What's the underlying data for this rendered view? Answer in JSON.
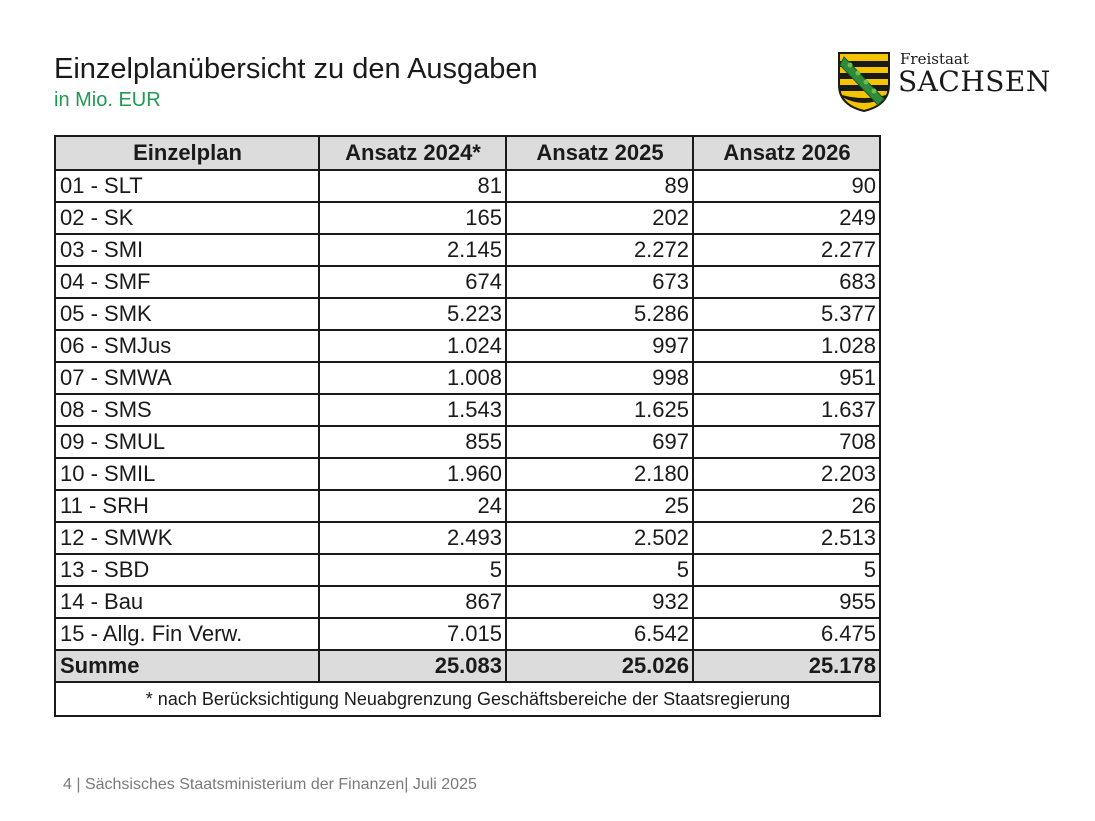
{
  "header": {
    "title": "Einzelplanübersicht zu den Ausgaben",
    "subtitle": "in Mio. EUR",
    "subtitle_color": "#1f9a4f"
  },
  "logo": {
    "line1": "Freistaat",
    "line2": "SACHSEN",
    "colors": {
      "yellow": "#f5c400",
      "black": "#1a1a1a",
      "green": "#2e8b3a"
    }
  },
  "table": {
    "columns": [
      "Einzelplan",
      "Ansatz 2024*",
      "Ansatz 2025",
      "Ansatz 2026"
    ],
    "rows": [
      [
        "01 - SLT",
        "81",
        "89",
        "90"
      ],
      [
        "02 - SK",
        "165",
        "202",
        "249"
      ],
      [
        "03 - SMI",
        "2.145",
        "2.272",
        "2.277"
      ],
      [
        "04 - SMF",
        "674",
        "673",
        "683"
      ],
      [
        "05 - SMK",
        "5.223",
        "5.286",
        "5.377"
      ],
      [
        "06 - SMJus",
        "1.024",
        "997",
        "1.028"
      ],
      [
        "07 - SMWA",
        "1.008",
        "998",
        "951"
      ],
      [
        "08 - SMS",
        "1.543",
        "1.625",
        "1.637"
      ],
      [
        "09 - SMUL",
        "855",
        "697",
        "708"
      ],
      [
        "10 - SMIL",
        "1.960",
        "2.180",
        "2.203"
      ],
      [
        "11 - SRH",
        "24",
        "25",
        "26"
      ],
      [
        "12 - SMWK",
        "2.493",
        "2.502",
        "2.513"
      ],
      [
        "13 - SBD",
        "5",
        "5",
        "5"
      ],
      [
        "14 - Bau",
        "867",
        "932",
        "955"
      ],
      [
        "15 - Allg. Fin Verw.",
        "7.015",
        "6.542",
        "6.475"
      ]
    ],
    "total": [
      "Summe",
      "25.083",
      "25.026",
      "25.178"
    ],
    "footnote": "* nach Berücksichtigung Neuabgrenzung Geschäftsbereiche der Staatsregierung",
    "header_bg": "#dcdcdc"
  },
  "footer": {
    "page_number": "4",
    "text": "| Sächsisches Staatsministerium der Finanzen| Juli 2025"
  }
}
